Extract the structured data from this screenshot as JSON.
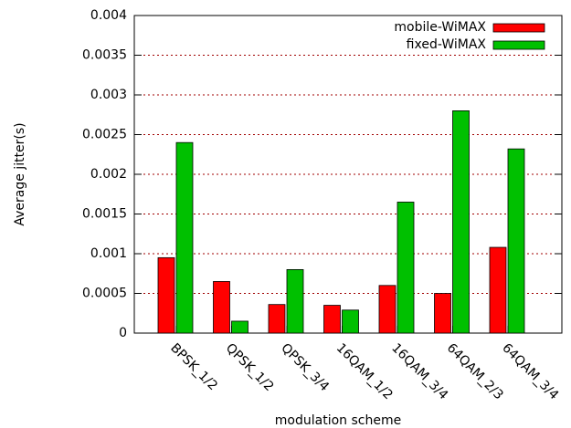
{
  "chart_data": {
    "type": "bar",
    "xlabel": "modulation scheme",
    "ylabel": "Average jitter(s)",
    "categories": [
      "BPSK_1/2",
      "QPSK_1/2",
      "QPSK_3/4",
      "16QAM_1/2",
      "16QAM_3/4",
      "64QAM_2/3",
      "64QAM_3/4"
    ],
    "series": [
      {
        "name": "mobile-WiMAX",
        "color": "#ff0000",
        "values": [
          0.00095,
          0.00065,
          0.00036,
          0.00035,
          0.0006,
          0.0005,
          0.00108
        ]
      },
      {
        "name": "fixed-WiMAX",
        "color": "#00c000",
        "values": [
          0.0024,
          0.00015,
          0.0008,
          0.00029,
          0.00165,
          0.0028,
          0.00232
        ]
      }
    ],
    "ylim": [
      0,
      0.004
    ],
    "yticks": [
      0,
      0.0005,
      0.001,
      0.0015,
      0.002,
      0.0025,
      0.003,
      0.0035,
      0.004
    ],
    "grid": true,
    "legend": "top-right"
  }
}
